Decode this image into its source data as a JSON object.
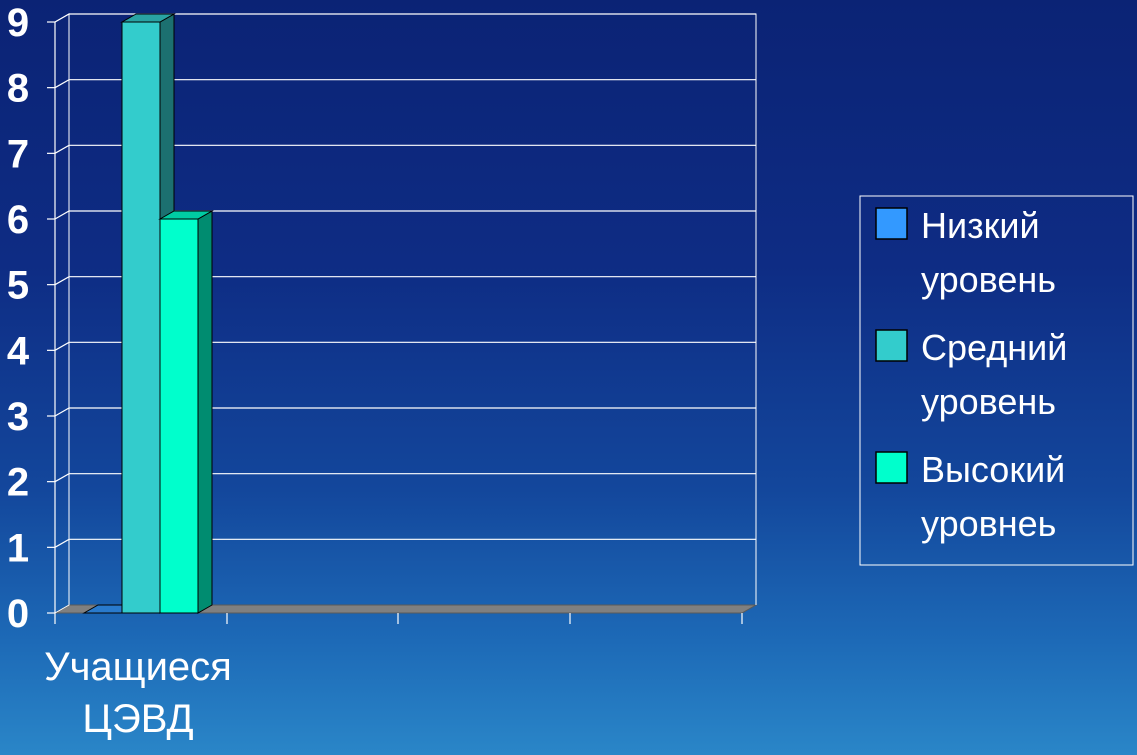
{
  "chart_data": {
    "type": "bar",
    "style": "3d-clustered",
    "categories": [
      "Учащиеся ЦЭВД"
    ],
    "category_lines": [
      [
        "Учащиеся",
        "ЦЭВД"
      ]
    ],
    "series": [
      {
        "name": "Низкий уровень",
        "name_lines": [
          "Низкий",
          "уровень"
        ],
        "values": [
          0
        ],
        "color": "#3399ff"
      },
      {
        "name": "Средний уровень",
        "name_lines": [
          "Средний",
          "уровень"
        ],
        "values": [
          9
        ],
        "color": "#33cccc"
      },
      {
        "name": "Высокий уровнеь",
        "name_lines": [
          "Высокий",
          "уровнеь"
        ],
        "values": [
          6
        ],
        "color": "#00ffcc"
      }
    ],
    "ylim": [
      0,
      9
    ],
    "yticks": [
      "0",
      "1",
      "2",
      "3",
      "4",
      "5",
      "6",
      "7",
      "8",
      "9"
    ],
    "grid": true,
    "legend_position": "right",
    "title": "",
    "xlabel": "",
    "ylabel": ""
  },
  "colors": {
    "gridline": "#ffffff",
    "floor": "#808080",
    "text": "#ffffff"
  }
}
